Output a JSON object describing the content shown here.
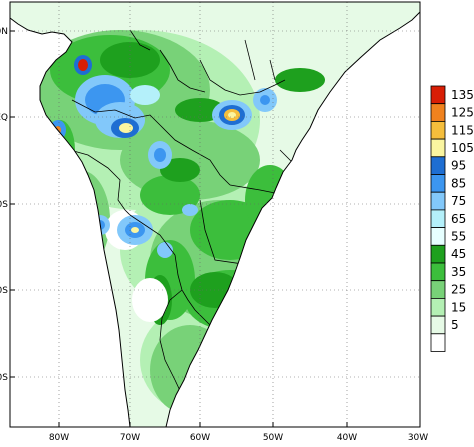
{
  "map": {
    "lat_labels": [
      "10N",
      "EQ",
      "10S",
      "20S",
      "30S"
    ],
    "lon_labels": [
      "80W",
      "70W",
      "60W",
      "50W",
      "40W",
      "30W"
    ]
  },
  "colorbar": {
    "levels": [
      {
        "value": "135",
        "color": "#d81e05"
      },
      {
        "value": "125",
        "color": "#f0821e"
      },
      {
        "value": "115",
        "color": "#f5be3c"
      },
      {
        "value": "105",
        "color": "#faf5a0"
      },
      {
        "value": "95",
        "color": "#1e6ed2"
      },
      {
        "value": "85",
        "color": "#3c96f0"
      },
      {
        "value": "75",
        "color": "#82c8fa"
      },
      {
        "value": "65",
        "color": "#b4f0fa"
      },
      {
        "value": "55",
        "color": "#e6ffff"
      },
      {
        "value": "45",
        "color": "#1ea01e"
      },
      {
        "value": "35",
        "color": "#3cbe3c"
      },
      {
        "value": "25",
        "color": "#78d278"
      },
      {
        "value": "15",
        "color": "#b4f0b4"
      },
      {
        "value": "5",
        "color": "#e6fae6"
      },
      {
        "value": "",
        "color": "#ffffff"
      }
    ]
  }
}
